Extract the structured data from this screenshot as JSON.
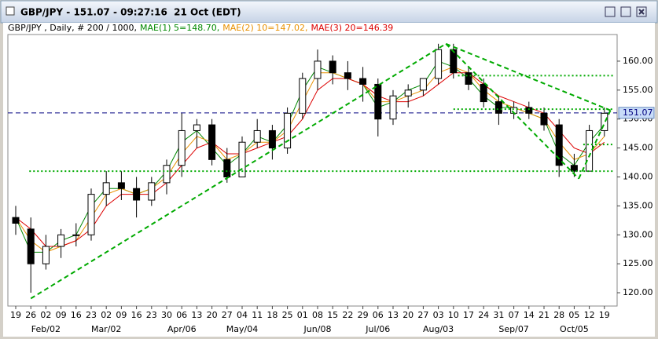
{
  "chart_data": {
    "type": "candlestick",
    "title": "GBP/JPY - 151.07 - 09:27:16  21 Oct (EDT)",
    "subtitle": "GBP/JPY , Daily, # 200 / 1000,",
    "categories": [
      "19",
      "26",
      "02",
      "09",
      "16",
      "23",
      "02",
      "09",
      "16",
      "23",
      "30",
      "06",
      "13",
      "20",
      "27",
      "04",
      "11",
      "18",
      "25",
      "01",
      "08",
      "15",
      "22",
      "29",
      "06",
      "13",
      "20",
      "27",
      "03",
      "10",
      "17",
      "24",
      "31",
      "07",
      "14",
      "21",
      "28",
      "05",
      "12",
      "19"
    ],
    "month_labels": [
      null,
      null,
      "Feb/02",
      null,
      null,
      null,
      "Mar/02",
      null,
      null,
      null,
      null,
      "Apr/06",
      null,
      null,
      null,
      "May/04",
      null,
      null,
      null,
      null,
      "Jun/08",
      null,
      null,
      null,
      "Jul/06",
      null,
      null,
      null,
      "Aug/03",
      null,
      null,
      null,
      null,
      "Sep/07",
      null,
      null,
      null,
      "Oct/05",
      null,
      null
    ],
    "open": [
      133,
      131,
      125,
      128,
      130,
      130,
      137,
      139,
      138,
      136,
      139,
      142,
      148,
      149,
      143,
      140,
      146,
      148,
      145,
      151,
      157,
      160,
      158,
      157,
      156,
      150,
      154,
      155,
      157,
      162,
      158,
      156,
      153,
      151,
      152,
      151,
      149,
      142,
      141,
      148
    ],
    "high": [
      135,
      133,
      130,
      131,
      132,
      138,
      141,
      141,
      140,
      140,
      143,
      151,
      150,
      150,
      145,
      147,
      150,
      149,
      152,
      158,
      162,
      161,
      160,
      159,
      157,
      155,
      156,
      157,
      163,
      163,
      159,
      157,
      154,
      153,
      153,
      152,
      150,
      144,
      149,
      152
    ],
    "low": [
      130,
      120,
      124,
      126,
      128,
      129,
      135,
      136,
      133,
      135,
      137,
      140,
      145,
      142,
      139,
      140,
      145,
      143,
      144,
      150,
      155,
      156,
      155,
      153,
      147,
      149,
      152,
      154,
      156,
      157,
      155,
      152,
      149,
      150,
      150,
      148,
      140,
      140,
      141,
      147
    ],
    "close": [
      132,
      125,
      128,
      130,
      130,
      137,
      139,
      138,
      136,
      139,
      142,
      148,
      149,
      143,
      140,
      146,
      148,
      145,
      151,
      157,
      160,
      158,
      157,
      156,
      150,
      154,
      155,
      157,
      162,
      158,
      156,
      153,
      151,
      152,
      151,
      149,
      142,
      141,
      148,
      151
    ],
    "series": [
      {
        "name": "MAE(1) 5=148.70,",
        "color": "#008800",
        "values": [
          133,
          127,
          127,
          129,
          130,
          135,
          138,
          138,
          137,
          138,
          141,
          146,
          148,
          145,
          142,
          144,
          147,
          146,
          149,
          155,
          159,
          158,
          157,
          156,
          152,
          153,
          155,
          156,
          160,
          159,
          157,
          154,
          152,
          152,
          151,
          150,
          144,
          142,
          146,
          149
        ]
      },
      {
        "name": "MAE(2) 10=147.02,",
        "color": "#e89000",
        "values": [
          133,
          129,
          127,
          128,
          129,
          133,
          137,
          138,
          137,
          138,
          140,
          144,
          147,
          146,
          143,
          144,
          146,
          146,
          148,
          153,
          158,
          158,
          157,
          156,
          153,
          153,
          154,
          155,
          158,
          159,
          158,
          155,
          153,
          152,
          151,
          150,
          146,
          143,
          144,
          147
        ]
      },
      {
        "name": "MAE(3) 20=146.39",
        "color": "#dd0000",
        "values": [
          133,
          131,
          128,
          128,
          129,
          131,
          135,
          137,
          137,
          137,
          139,
          142,
          145,
          146,
          144,
          144,
          145,
          146,
          147,
          150,
          155,
          157,
          157,
          156,
          154,
          153,
          153,
          154,
          156,
          158,
          158,
          156,
          154,
          153,
          152,
          151,
          148,
          145,
          144,
          146
        ]
      }
    ],
    "current_price": {
      "value": 151.07,
      "label": "151.07"
    },
    "trendlines": [
      {
        "x": [
          1,
          28.5
        ],
        "y": [
          119,
          163
        ]
      },
      {
        "x": [
          28.5,
          37.3
        ],
        "y": [
          163,
          139.7
        ]
      },
      {
        "x": [
          37.3,
          39.4
        ],
        "y": [
          139.7,
          151.5
        ]
      },
      {
        "x": [
          28.5,
          39.4
        ],
        "y": [
          163,
          151.5
        ]
      },
      {
        "x": [
          0.9,
          39.6
        ],
        "y": [
          141,
          141
        ]
      },
      {
        "x": [
          29.3,
          39.6
        ],
        "y": [
          157.5,
          157.5
        ]
      },
      {
        "x": [
          29,
          39.6
        ],
        "y": [
          151.7,
          151.7
        ]
      },
      {
        "x": [
          37.6,
          39.6
        ],
        "y": [
          145.6,
          145.6
        ]
      }
    ],
    "ylim": [
      117.7,
      164.6
    ],
    "yticks": [
      {
        "value": 120,
        "label": "120.00"
      },
      {
        "value": 125,
        "label": "125.00"
      },
      {
        "value": 130,
        "label": "130.00"
      },
      {
        "value": 135,
        "label": "135.00"
      },
      {
        "value": 140,
        "label": "140.00"
      },
      {
        "value": 145,
        "label": "145.00"
      },
      {
        "value": 150,
        "label": "150.00"
      },
      {
        "value": 155,
        "label": "155.00"
      },
      {
        "value": 160,
        "label": "160.00"
      }
    ]
  }
}
